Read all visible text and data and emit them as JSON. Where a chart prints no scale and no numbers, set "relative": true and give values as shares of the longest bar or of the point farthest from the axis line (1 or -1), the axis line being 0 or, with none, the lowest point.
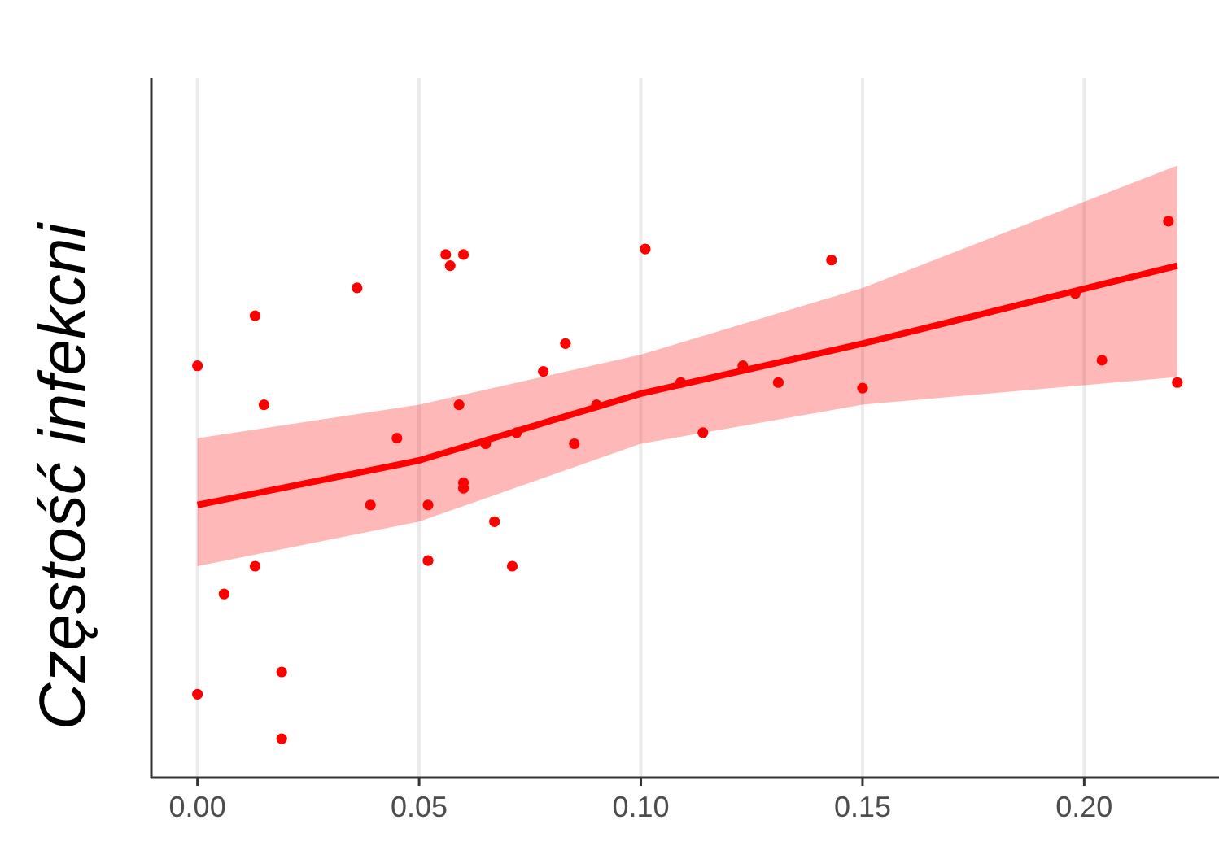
{
  "chart_data": {
    "type": "scatter",
    "ylabel": "Częstość infekcni",
    "relative": true,
    "xlim": [
      -0.0104,
      0.2304
    ],
    "xticks": [
      {
        "value": 0,
        "label": "0.00"
      },
      {
        "value": 0.05,
        "label": "0.05"
      },
      {
        "value": 0.1,
        "label": "0.10"
      },
      {
        "value": 0.15,
        "label": "0.15"
      },
      {
        "value": 0.2,
        "label": "0.20"
      }
    ],
    "grid": "x",
    "series": [
      {
        "color": "#ff0000",
        "marker": "circle",
        "x": [
          0.0,
          0.013,
          0.015,
          0.0,
          0.006,
          0.013,
          0.019,
          0.019,
          0.036,
          0.039,
          0.045,
          0.052,
          0.052,
          0.056,
          0.057,
          0.06,
          0.059,
          0.06,
          0.06,
          0.065,
          0.067,
          0.071,
          0.072,
          0.078,
          0.083,
          0.085,
          0.09,
          0.101,
          0.109,
          0.114,
          0.123,
          0.131,
          0.143,
          0.15,
          0.198,
          0.204,
          0.219,
          0.221
        ],
        "values": [
          0.74,
          0.83,
          0.67,
          0.15,
          0.33,
          0.38,
          0.19,
          0.07,
          0.88,
          0.49,
          0.61,
          0.39,
          0.49,
          0.94,
          0.92,
          0.94,
          0.67,
          0.53,
          0.52,
          0.6,
          0.46,
          0.38,
          0.62,
          0.73,
          0.78,
          0.6,
          0.67,
          0.95,
          0.71,
          0.62,
          0.74,
          0.71,
          0.93,
          0.7,
          0.87,
          0.75,
          1,
          0.71
        ]
      },
      {
        "type": "line",
        "color": "#ff0000",
        "marker": "none",
        "x": [
          0,
          0.05,
          0.1,
          0.15,
          0.221
        ],
        "values": [
          0.49,
          0.57,
          0.69,
          0.78,
          0.92
        ],
        "lower": [
          0.38,
          0.46,
          0.6,
          0.67,
          0.72
        ],
        "upper": [
          0.61,
          0.67,
          0.76,
          0.88,
          1.1
        ]
      }
    ]
  }
}
